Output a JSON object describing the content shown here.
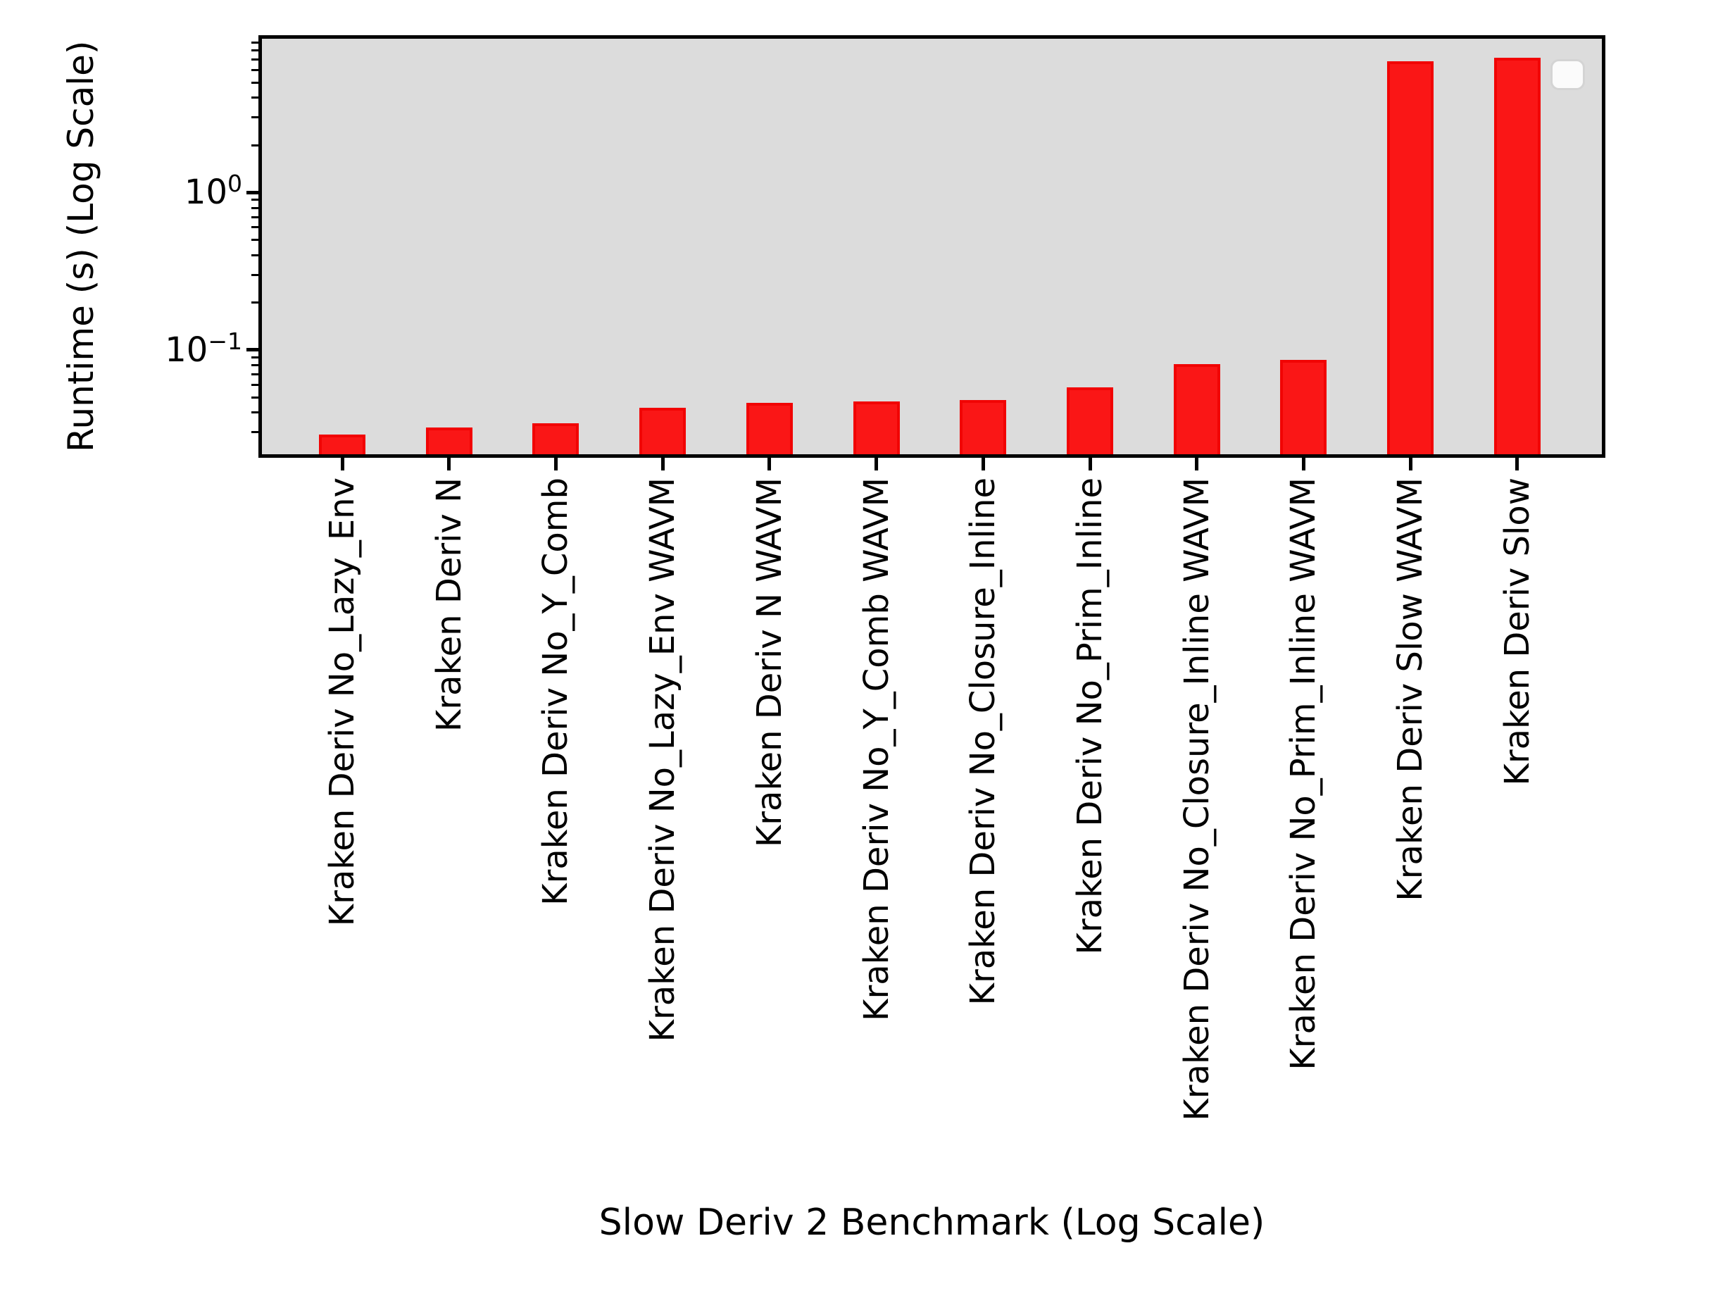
{
  "figure": {
    "background_color": "#ffffff"
  },
  "chart_data": {
    "type": "bar",
    "title": "",
    "xlabel": "Slow Deriv 2 Benchmark (Log Scale)",
    "ylabel": "Runtime (s) (Log Scale)",
    "yscale": "log",
    "ylim": [
      0.0217,
      9.5
    ],
    "grid": false,
    "plot_bg_color": "#dcdcdc",
    "bar_fill_color": "#fa1616",
    "bar_edge_color": "#f10404",
    "axis_color": "#000000",
    "categories": [
      "Kraken Deriv No_Lazy_Env",
      "Kraken Deriv N",
      "Kraken Deriv No_Y_Comb",
      "Kraken Deriv No_Lazy_Env WAVM",
      "Kraken Deriv N WAVM",
      "Kraken Deriv No_Y_Comb WAVM",
      "Kraken Deriv No_Closure_Inline",
      "Kraken Deriv No_Prim_Inline",
      "Kraken Deriv No_Closure_Inline WAVM",
      "Kraken Deriv No_Prim_Inline WAVM",
      "Kraken Deriv Slow WAVM",
      "Kraken Deriv Slow"
    ],
    "values": [
      0.029,
      0.032,
      0.034,
      0.043,
      0.046,
      0.047,
      0.048,
      0.058,
      0.081,
      0.086,
      6.8,
      7.2
    ],
    "y_major_ticks": [
      {
        "value": 0.1,
        "base": "10",
        "exp": "−1"
      },
      {
        "value": 1,
        "base": "10",
        "exp": "0"
      }
    ],
    "legend": {
      "visible": true,
      "position": "upper right",
      "entries": []
    }
  }
}
